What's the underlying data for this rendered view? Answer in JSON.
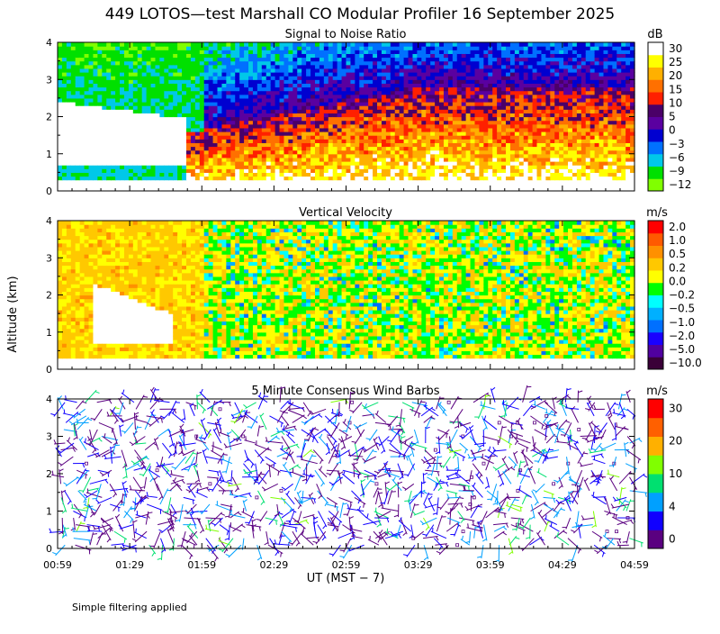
{
  "title": "449 LOTOS—test Marshall CO Modular Profiler 16 September 2025",
  "ylabel": "Altitude (km)",
  "xlabel": "UT  (MST − 7)",
  "footnote": "Simple filtering applied",
  "x_ticks": [
    "00:59",
    "01:29",
    "01:59",
    "02:29",
    "02:59",
    "03:29",
    "03:59",
    "04:29",
    "04:59"
  ],
  "y_ticks": [
    "0",
    "1",
    "2",
    "3",
    "4"
  ],
  "colors": {
    "snr": [
      "#80ff00",
      "#00e000",
      "#00c8e8",
      "#0070ff",
      "#0000d0",
      "#5a00a0",
      "#4a0068",
      "#ff2000",
      "#ff7000",
      "#ffb000",
      "#ffff00",
      "#ffffff"
    ],
    "vv": [
      "#3a0038",
      "#5000a0",
      "#1a00ff",
      "#0070ff",
      "#00b0ff",
      "#00ffff",
      "#00ff00",
      "#ffff00",
      "#ffc800",
      "#ff9000",
      "#ff5a00",
      "#ff0000"
    ],
    "wind": [
      "#5a0080",
      "#1000ff",
      "#00a0ff",
      "#00e070",
      "#80ff00",
      "#ffb000",
      "#ff6000",
      "#ff0000"
    ]
  },
  "chart_data": [
    {
      "type": "heatmap",
      "title": "Signal to Noise Ratio",
      "unit": "dB",
      "x_range": [
        "00:59",
        "04:59"
      ],
      "ylim": [
        0,
        4
      ],
      "colorbar_ticks": [
        "30",
        "25",
        "20",
        "15",
        "10",
        "5",
        "0",
        "−3",
        "−6",
        "−9",
        "−12"
      ],
      "colorbar_levels": [
        -12,
        -9,
        -6,
        -3,
        0,
        5,
        10,
        15,
        20,
        25,
        30
      ]
    },
    {
      "type": "heatmap",
      "title": "Vertical Velocity",
      "unit": "m/s",
      "x_range": [
        "00:59",
        "04:59"
      ],
      "ylim": [
        0,
        4
      ],
      "colorbar_ticks": [
        "2.0",
        "1.0",
        "0.5",
        "0.2",
        "0.0",
        "−0.2",
        "−0.5",
        "−1.0",
        "−2.0",
        "−5.0",
        "−10.0"
      ],
      "colorbar_levels": [
        -10,
        -5,
        -2,
        -1,
        -0.5,
        -0.2,
        0,
        0.2,
        0.5,
        1,
        2
      ]
    },
    {
      "type": "scatter",
      "title": "5 Minute Consensus Wind Barbs",
      "unit": "m/s",
      "x_range": [
        "00:59",
        "04:59"
      ],
      "ylim": [
        0,
        4
      ],
      "colorbar_ticks": [
        "30",
        "20",
        "10",
        "4",
        "0"
      ],
      "colorbar_levels": [
        0,
        4,
        10,
        20,
        30
      ]
    }
  ]
}
